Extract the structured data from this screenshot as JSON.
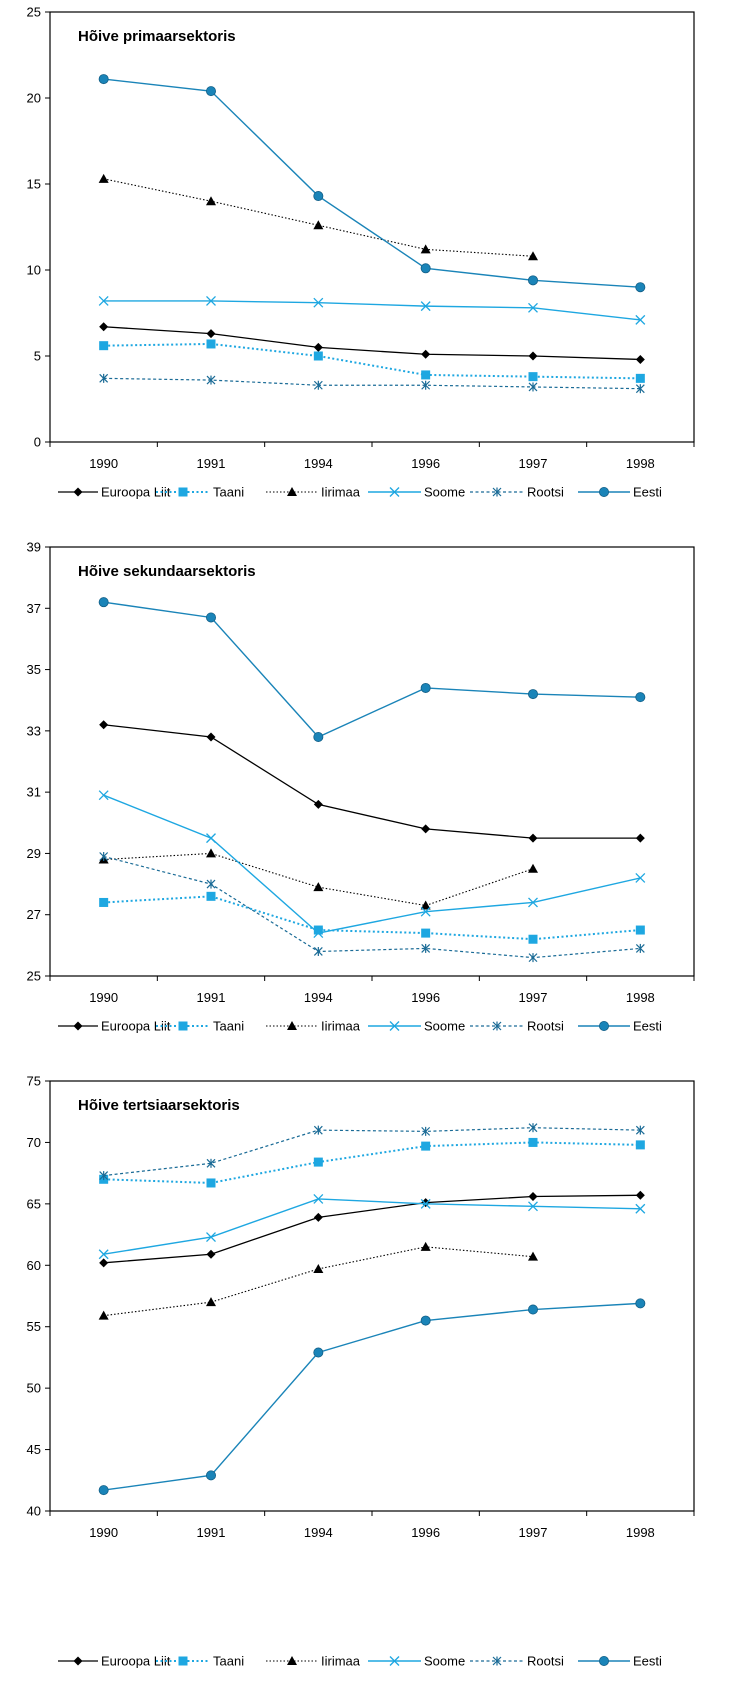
{
  "colors": {
    "Euroopa Liit": "#000000",
    "Taani": "#1ea7e1",
    "Iirimaa": "#000000",
    "Soome": "#1ea7e1",
    "Rootsi": "#1a6b96",
    "Eesti": "#1a84b8",
    "axis": "#000000"
  },
  "chart_data": [
    {
      "type": "line",
      "title": "Hõive primaarsektoris",
      "categories": [
        "1990",
        "1991",
        "1994",
        "1996",
        "1997",
        "1998"
      ],
      "ylim": [
        0,
        25
      ],
      "yticks": [
        0,
        5,
        10,
        15,
        20,
        25
      ],
      "legend_position": "bottom",
      "series": [
        {
          "name": "Euroopa Liit",
          "values": [
            6.7,
            6.3,
            5.5,
            5.1,
            5.0,
            4.8
          ]
        },
        {
          "name": "Taani",
          "values": [
            5.6,
            5.7,
            5.0,
            3.9,
            3.8,
            3.7
          ]
        },
        {
          "name": "Iirimaa",
          "values": [
            15.3,
            14.0,
            12.6,
            11.2,
            10.8,
            null
          ]
        },
        {
          "name": "Soome",
          "values": [
            8.2,
            8.2,
            8.1,
            7.9,
            7.8,
            7.1
          ]
        },
        {
          "name": "Rootsi",
          "values": [
            3.7,
            3.6,
            3.3,
            3.3,
            3.2,
            3.1
          ]
        },
        {
          "name": "Eesti",
          "values": [
            21.1,
            20.4,
            14.3,
            10.1,
            9.4,
            9.0
          ]
        }
      ]
    },
    {
      "type": "line",
      "title": "Hõive sekundaarsektoris",
      "categories": [
        "1990",
        "1991",
        "1994",
        "1996",
        "1997",
        "1998"
      ],
      "ylim": [
        25,
        39
      ],
      "yticks": [
        25,
        27,
        29,
        31,
        33,
        35,
        37,
        39
      ],
      "legend_position": "bottom",
      "series": [
        {
          "name": "Euroopa Liit",
          "values": [
            33.2,
            32.8,
            30.6,
            29.8,
            29.5,
            29.5
          ]
        },
        {
          "name": "Taani",
          "values": [
            27.4,
            27.6,
            26.5,
            26.4,
            26.2,
            26.5
          ]
        },
        {
          "name": "Iirimaa",
          "values": [
            28.8,
            29.0,
            27.9,
            27.3,
            28.5,
            null
          ]
        },
        {
          "name": "Soome",
          "values": [
            30.9,
            29.5,
            26.4,
            27.1,
            27.4,
            28.2
          ]
        },
        {
          "name": "Rootsi",
          "values": [
            28.9,
            28.0,
            25.8,
            25.9,
            25.6,
            25.9
          ]
        },
        {
          "name": "Eesti",
          "values": [
            37.2,
            36.7,
            32.8,
            34.4,
            34.2,
            34.1
          ]
        }
      ]
    },
    {
      "type": "line",
      "title": "Hõive tertsiaarsektoris",
      "categories": [
        "1990",
        "1991",
        "1994",
        "1996",
        "1997",
        "1998"
      ],
      "ylim": [
        40,
        75
      ],
      "yticks": [
        40,
        45,
        50,
        55,
        60,
        65,
        70,
        75
      ],
      "legend_position": "bottom",
      "series": [
        {
          "name": "Euroopa Liit",
          "values": [
            60.2,
            60.9,
            63.9,
            65.1,
            65.6,
            65.7
          ]
        },
        {
          "name": "Taani",
          "values": [
            67.0,
            66.7,
            68.4,
            69.7,
            70.0,
            69.8
          ]
        },
        {
          "name": "Iirimaa",
          "values": [
            55.9,
            57.0,
            59.7,
            61.5,
            60.7,
            null
          ]
        },
        {
          "name": "Soome",
          "values": [
            60.9,
            62.3,
            65.4,
            65.0,
            64.8,
            64.6
          ]
        },
        {
          "name": "Rootsi",
          "values": [
            67.3,
            68.3,
            71.0,
            70.9,
            71.2,
            71.0
          ]
        },
        {
          "name": "Eesti",
          "values": [
            41.7,
            42.9,
            52.9,
            55.5,
            56.4,
            56.9
          ]
        }
      ]
    }
  ]
}
